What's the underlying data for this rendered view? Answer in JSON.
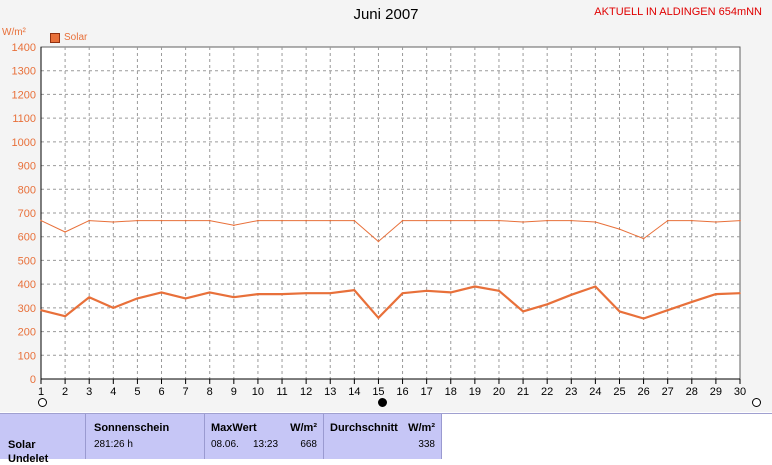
{
  "chart_data": {
    "type": "line",
    "title": "Juni 2007",
    "subtitle": "AKTUELL IN ALDINGEN 654mNN",
    "ylabel": "W/m²",
    "ylim": [
      0,
      1400
    ],
    "yticks": [
      0,
      100,
      200,
      300,
      400,
      500,
      600,
      700,
      800,
      900,
      1000,
      1100,
      1200,
      1300,
      1400
    ],
    "xlim": [
      1,
      30
    ],
    "x": [
      1,
      2,
      3,
      4,
      5,
      6,
      7,
      8,
      9,
      10,
      11,
      12,
      13,
      14,
      15,
      16,
      17,
      18,
      19,
      20,
      21,
      22,
      23,
      24,
      25,
      26,
      27,
      28,
      29,
      30
    ],
    "grid": true,
    "legend_position": "top-left",
    "series": [
      {
        "name": "Solar",
        "color": "#e8703a",
        "values": [
          290,
          265,
          345,
          300,
          340,
          365,
          340,
          365,
          345,
          358,
          358,
          362,
          362,
          375,
          258,
          362,
          372,
          365,
          390,
          372,
          285,
          315,
          355,
          390,
          285,
          255,
          290,
          325,
          358,
          362
        ]
      },
      {
        "name": "",
        "color": "#e8703a",
        "values": [
          668,
          620,
          668,
          662,
          668,
          668,
          668,
          668,
          648,
          668,
          668,
          668,
          668,
          668,
          580,
          668,
          668,
          668,
          668,
          668,
          662,
          668,
          668,
          662,
          632,
          592,
          668,
          668,
          662,
          668
        ]
      }
    ]
  },
  "legend": {
    "label": "Solar"
  },
  "footer": {
    "row_label": "Solar",
    "row_label_2": "Undelet",
    "sunshine": {
      "head": "Sonnenschein",
      "value": "281:26 h"
    },
    "max": {
      "head": "MaxWert",
      "unit": "W/m²",
      "date": "08.06.",
      "time": "13:23",
      "value": "668"
    },
    "avg": {
      "head": "Durchschnitt",
      "unit": "W/m²",
      "value": "338"
    }
  }
}
